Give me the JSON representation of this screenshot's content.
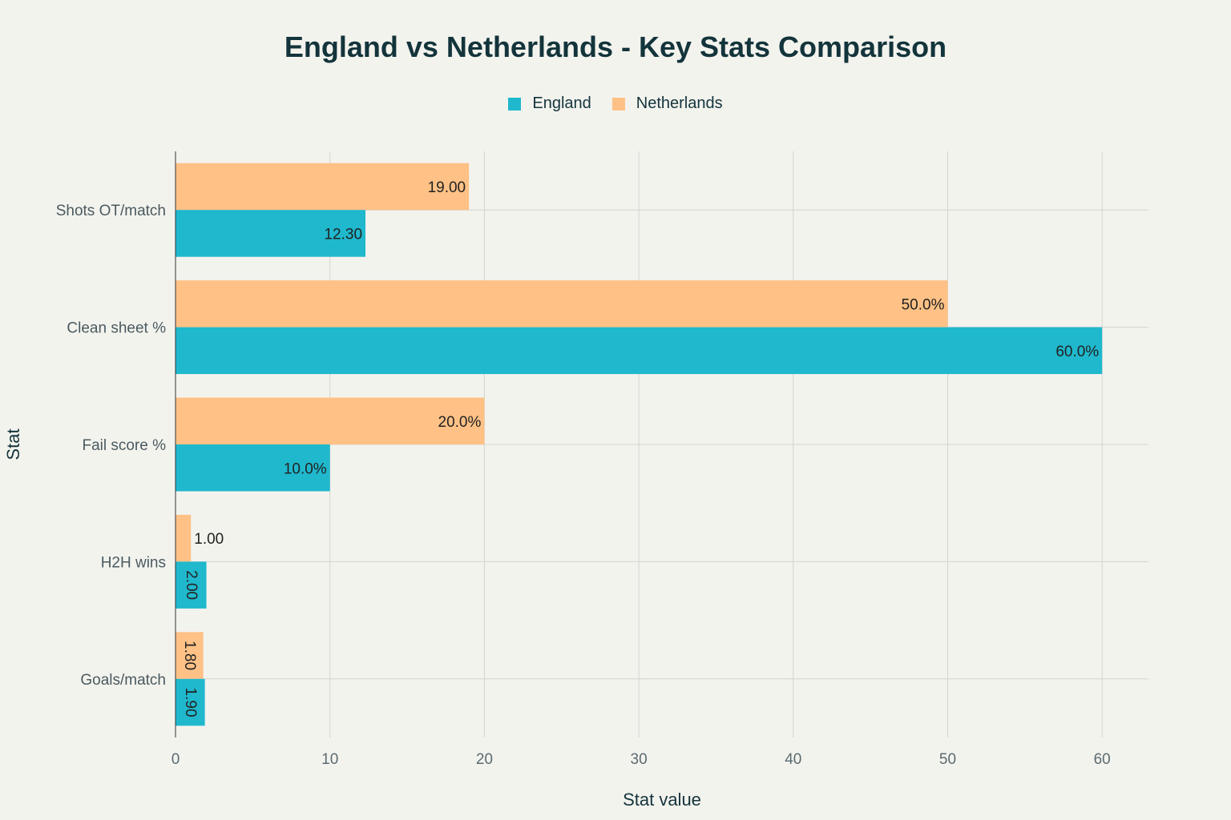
{
  "chart_data": {
    "type": "bar",
    "orientation": "horizontal",
    "title": "England vs Netherlands - Key Stats Comparison",
    "xlabel": "Stat value",
    "ylabel": "Stat",
    "xlim": [
      0,
      63
    ],
    "xticks": [
      0,
      10,
      20,
      30,
      40,
      50,
      60
    ],
    "categories": [
      "Shots OT/match",
      "Clean sheet %",
      "Fail score %",
      "H2H wins",
      "Goals/match"
    ],
    "series": [
      {
        "name": "Netherlands",
        "color": "#ffc185",
        "values": [
          19.0,
          50.0,
          20.0,
          1.0,
          1.8
        ],
        "labels": [
          "19.00",
          "50.0%",
          "20.0%",
          "1.00",
          "1.80"
        ]
      },
      {
        "name": "England",
        "color": "#1fb8cd",
        "values": [
          12.3,
          60.0,
          10.0,
          2.0,
          1.9
        ],
        "labels": [
          "12.30",
          "60.0%",
          "10.0%",
          "2.00",
          "1.90"
        ]
      }
    ],
    "legend": {
      "placement": "top-center",
      "order": [
        "England",
        "Netherlands"
      ]
    },
    "grid": true
  }
}
